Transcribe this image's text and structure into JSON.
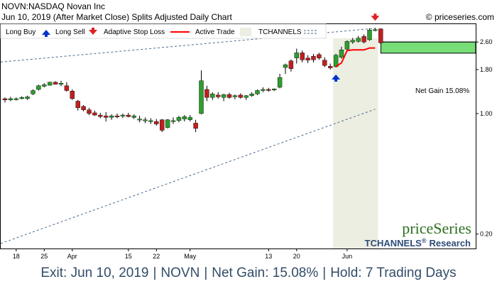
{
  "header": {
    "line1": "NOVN:NASDAQ Novan Inc",
    "line2": "Jun 10, 2019 (After Market Close)  Splits Adjusted Daily Chart",
    "copyright": "© priceseries.com"
  },
  "legend": {
    "long_buy": "Long Buy",
    "long_sell": "Long Sell",
    "adaptive_stop_loss": "Adaptive Stop Loss",
    "active_trade": "Active Trade",
    "tchannels": "TCHANNELS"
  },
  "annotation": {
    "net_gain_label": "Net Gain 15.08%"
  },
  "watermark": {
    "brand": "priceSeries",
    "product": "TCHANNELS",
    "reg": "®",
    "research": "Research"
  },
  "footer": {
    "exit": "Exit: Jun 10, 2019",
    "symbol": "NOVN",
    "net_gain": "Net Gain: 15.08%",
    "hold": "Hold: 7 Trading Days"
  },
  "colors": {
    "up_candle": "#2e9e2e",
    "down_candle": "#c02020",
    "stop_loss": "#ff0000",
    "buy_arrow": "#0033cc",
    "sell_arrow": "#dd2222",
    "active_trade_bg": "#ebeee0",
    "gain_box": "#77dd77",
    "channel": "#4a6a8a",
    "brand_green": "#2b6e1e",
    "brand_blue": "#2d4b78"
  },
  "chart_data": {
    "type": "candlestick",
    "y_scale": "log",
    "ylim": [
      0.165,
      3.3
    ],
    "y_ticks": [
      0.2,
      1.0,
      1.8,
      2.6
    ],
    "y_tick_labels": [
      "0.20",
      "1.00",
      "1.80",
      "2.60"
    ],
    "x_tick_labels": [
      {
        "label": "18",
        "index": 2
      },
      {
        "label": "25",
        "index": 7
      },
      {
        "label": "Apr",
        "index": 12
      },
      {
        "label": "15",
        "index": 22
      },
      {
        "label": "22",
        "index": 27
      },
      {
        "label": "May",
        "index": 33
      },
      {
        "label": "13",
        "index": 47
      },
      {
        "label": "20",
        "index": 52
      },
      {
        "label": "Jun",
        "index": 61
      }
    ],
    "candles": [
      {
        "o": 1.22,
        "h": 1.24,
        "l": 1.16,
        "c": 1.2
      },
      {
        "o": 1.2,
        "h": 1.25,
        "l": 1.18,
        "c": 1.22
      },
      {
        "o": 1.21,
        "h": 1.24,
        "l": 1.19,
        "c": 1.22
      },
      {
        "o": 1.22,
        "h": 1.26,
        "l": 1.21,
        "c": 1.24
      },
      {
        "o": 1.22,
        "h": 1.27,
        "l": 1.2,
        "c": 1.25
      },
      {
        "o": 1.3,
        "h": 1.38,
        "l": 1.28,
        "c": 1.36
      },
      {
        "o": 1.38,
        "h": 1.47,
        "l": 1.36,
        "c": 1.45
      },
      {
        "o": 1.44,
        "h": 1.5,
        "l": 1.42,
        "c": 1.47
      },
      {
        "o": 1.46,
        "h": 1.53,
        "l": 1.45,
        "c": 1.52
      },
      {
        "o": 1.52,
        "h": 1.54,
        "l": 1.47,
        "c": 1.48
      },
      {
        "o": 1.48,
        "h": 1.55,
        "l": 1.44,
        "c": 1.5
      },
      {
        "o": 1.45,
        "h": 1.52,
        "l": 1.34,
        "c": 1.36
      },
      {
        "o": 1.35,
        "h": 1.38,
        "l": 1.2,
        "c": 1.22
      },
      {
        "o": 1.18,
        "h": 1.2,
        "l": 1.04,
        "c": 1.08
      },
      {
        "o": 1.1,
        "h": 1.12,
        "l": 1.03,
        "c": 1.05
      },
      {
        "o": 1.05,
        "h": 1.08,
        "l": 0.98,
        "c": 1.0
      },
      {
        "o": 1.01,
        "h": 1.04,
        "l": 0.97,
        "c": 0.98
      },
      {
        "o": 0.98,
        "h": 1.01,
        "l": 0.94,
        "c": 0.96
      },
      {
        "o": 0.97,
        "h": 1.02,
        "l": 0.9,
        "c": 0.95
      },
      {
        "o": 0.95,
        "h": 0.99,
        "l": 0.92,
        "c": 0.97
      },
      {
        "o": 0.97,
        "h": 1.0,
        "l": 0.94,
        "c": 0.96
      },
      {
        "o": 0.97,
        "h": 1.0,
        "l": 0.94,
        "c": 0.98
      },
      {
        "o": 0.98,
        "h": 1.01,
        "l": 0.95,
        "c": 0.96
      },
      {
        "o": 0.95,
        "h": 0.99,
        "l": 0.93,
        "c": 0.97
      },
      {
        "o": 0.92,
        "h": 0.97,
        "l": 0.89,
        "c": 0.93
      },
      {
        "o": 0.91,
        "h": 0.95,
        "l": 0.88,
        "c": 0.92
      },
      {
        "o": 0.9,
        "h": 0.94,
        "l": 0.87,
        "c": 0.91
      },
      {
        "o": 0.9,
        "h": 0.93,
        "l": 0.85,
        "c": 0.87
      },
      {
        "o": 0.92,
        "h": 0.93,
        "l": 0.78,
        "c": 0.8
      },
      {
        "o": 0.83,
        "h": 0.93,
        "l": 0.82,
        "c": 0.92
      },
      {
        "o": 0.9,
        "h": 0.95,
        "l": 0.87,
        "c": 0.91
      },
      {
        "o": 0.91,
        "h": 0.97,
        "l": 0.89,
        "c": 0.95
      },
      {
        "o": 0.93,
        "h": 0.98,
        "l": 0.9,
        "c": 0.96
      },
      {
        "o": 0.92,
        "h": 0.98,
        "l": 0.9,
        "c": 0.95
      },
      {
        "o": 0.88,
        "h": 0.92,
        "l": 0.78,
        "c": 0.82
      },
      {
        "o": 1.0,
        "h": 1.78,
        "l": 0.99,
        "c": 1.55
      },
      {
        "o": 1.38,
        "h": 1.45,
        "l": 1.18,
        "c": 1.24
      },
      {
        "o": 1.24,
        "h": 1.33,
        "l": 1.2,
        "c": 1.3
      },
      {
        "o": 1.28,
        "h": 1.33,
        "l": 1.22,
        "c": 1.25
      },
      {
        "o": 1.24,
        "h": 1.3,
        "l": 1.18,
        "c": 1.29
      },
      {
        "o": 1.29,
        "h": 1.32,
        "l": 1.22,
        "c": 1.24
      },
      {
        "o": 1.25,
        "h": 1.29,
        "l": 1.21,
        "c": 1.27
      },
      {
        "o": 1.28,
        "h": 1.31,
        "l": 1.22,
        "c": 1.24
      },
      {
        "o": 1.24,
        "h": 1.28,
        "l": 1.2,
        "c": 1.27
      },
      {
        "o": 1.27,
        "h": 1.33,
        "l": 1.25,
        "c": 1.3
      },
      {
        "o": 1.3,
        "h": 1.38,
        "l": 1.28,
        "c": 1.36
      },
      {
        "o": 1.36,
        "h": 1.42,
        "l": 1.33,
        "c": 1.38
      },
      {
        "o": 1.38,
        "h": 1.41,
        "l": 1.34,
        "c": 1.37
      },
      {
        "o": 1.38,
        "h": 1.4,
        "l": 1.35,
        "c": 1.39
      },
      {
        "o": 1.42,
        "h": 1.7,
        "l": 1.4,
        "c": 1.62
      },
      {
        "o": 1.85,
        "h": 1.95,
        "l": 1.7,
        "c": 1.92
      },
      {
        "o": 2.02,
        "h": 2.06,
        "l": 1.75,
        "c": 1.82
      },
      {
        "o": 2.1,
        "h": 2.38,
        "l": 1.95,
        "c": 2.25
      },
      {
        "o": 2.25,
        "h": 2.32,
        "l": 1.98,
        "c": 2.05
      },
      {
        "o": 2.1,
        "h": 2.18,
        "l": 1.96,
        "c": 2.04
      },
      {
        "o": 2.15,
        "h": 2.22,
        "l": 1.98,
        "c": 2.05
      },
      {
        "o": 2.2,
        "h": 2.25,
        "l": 2.05,
        "c": 2.1
      },
      {
        "o": 2.04,
        "h": 2.12,
        "l": 1.86,
        "c": 1.9
      },
      {
        "o": 1.88,
        "h": 1.95,
        "l": 1.8,
        "c": 1.84
      },
      {
        "o": 1.87,
        "h": 2.22,
        "l": 1.85,
        "c": 2.18
      },
      {
        "o": 2.12,
        "h": 2.44,
        "l": 2.08,
        "c": 2.34
      },
      {
        "o": 2.36,
        "h": 2.66,
        "l": 2.3,
        "c": 2.62
      },
      {
        "o": 2.6,
        "h": 2.75,
        "l": 2.54,
        "c": 2.66
      },
      {
        "o": 2.62,
        "h": 2.82,
        "l": 2.58,
        "c": 2.74
      },
      {
        "o": 2.8,
        "h": 2.88,
        "l": 2.55,
        "c": 2.6
      },
      {
        "o": 2.68,
        "h": 3.12,
        "l": 2.64,
        "c": 3.05
      },
      {
        "o": 3.05,
        "h": 3.14,
        "l": 3.0,
        "c": 3.07
      },
      {
        "o": 3.1,
        "h": 3.12,
        "l": 2.52,
        "c": 2.57
      }
    ],
    "stop_loss": [
      {
        "index": 59,
        "value": 1.87
      },
      {
        "index": 60,
        "value": 1.97
      },
      {
        "index": 61,
        "value": 2.32
      },
      {
        "index": 62,
        "value": 2.34
      },
      {
        "index": 63,
        "value": 2.34
      },
      {
        "index": 64,
        "value": 2.34
      },
      {
        "index": 65,
        "value": 2.4
      },
      {
        "index": 66,
        "value": 2.4
      }
    ],
    "long_buy_index": 59,
    "long_sell_index": 66,
    "active_trade_range": [
      59,
      66
    ],
    "net_gain_box": {
      "low": 2.24,
      "high": 2.6
    },
    "channel_upper": [
      {
        "index": 0,
        "value": 2.0
      },
      {
        "index": 66,
        "value": 3.12
      }
    ],
    "channel_lower": [
      {
        "index": 0,
        "value": 0.18
      },
      {
        "index": 66,
        "value": 1.06
      }
    ]
  }
}
